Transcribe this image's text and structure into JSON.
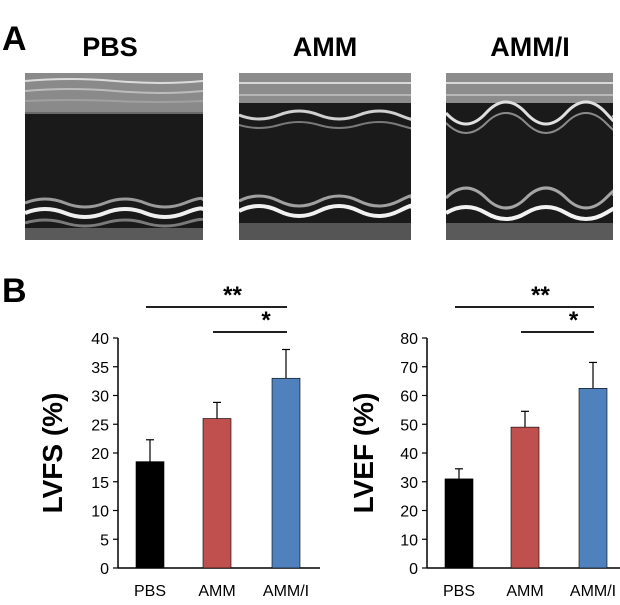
{
  "panels": {
    "a_label": "A",
    "b_label": "B",
    "echo_titles": [
      "PBS",
      "AMM",
      "AMM/I"
    ]
  },
  "colors": {
    "pbs": "#000000",
    "amm": "#c0504d",
    "ammi": "#4f81bd"
  },
  "chart_data": [
    {
      "type": "bar",
      "title": "",
      "xlabel": "",
      "ylabel": "LVFS (%)",
      "ylim": [
        0,
        40
      ],
      "yticks": [
        0,
        5,
        10,
        15,
        20,
        25,
        30,
        35,
        40
      ],
      "categories": [
        "PBS",
        "AMM",
        "AMM/I"
      ],
      "values": [
        18.5,
        26,
        33
      ],
      "errors": [
        3.8,
        2.8,
        5
      ],
      "bar_colors": [
        "#000000",
        "#c0504d",
        "#4f81bd"
      ],
      "grid": false,
      "significance": [
        {
          "from": "PBS",
          "to": "AMM/I",
          "label": "**"
        },
        {
          "from": "AMM",
          "to": "AMM/I",
          "label": "*"
        }
      ]
    },
    {
      "type": "bar",
      "title": "",
      "xlabel": "",
      "ylabel": "LVEF (%)",
      "ylim": [
        0,
        80
      ],
      "yticks": [
        0,
        10,
        20,
        30,
        40,
        50,
        60,
        70,
        80
      ],
      "categories": [
        "PBS",
        "AMM",
        "AMM/I"
      ],
      "values": [
        31,
        49,
        62.5
      ],
      "errors": [
        3.5,
        5.5,
        9
      ],
      "bar_colors": [
        "#000000",
        "#c0504d",
        "#4f81bd"
      ],
      "grid": false,
      "significance": [
        {
          "from": "PBS",
          "to": "AMM/I",
          "label": "**"
        },
        {
          "from": "AMM",
          "to": "AMM/I",
          "label": "*"
        }
      ]
    }
  ]
}
